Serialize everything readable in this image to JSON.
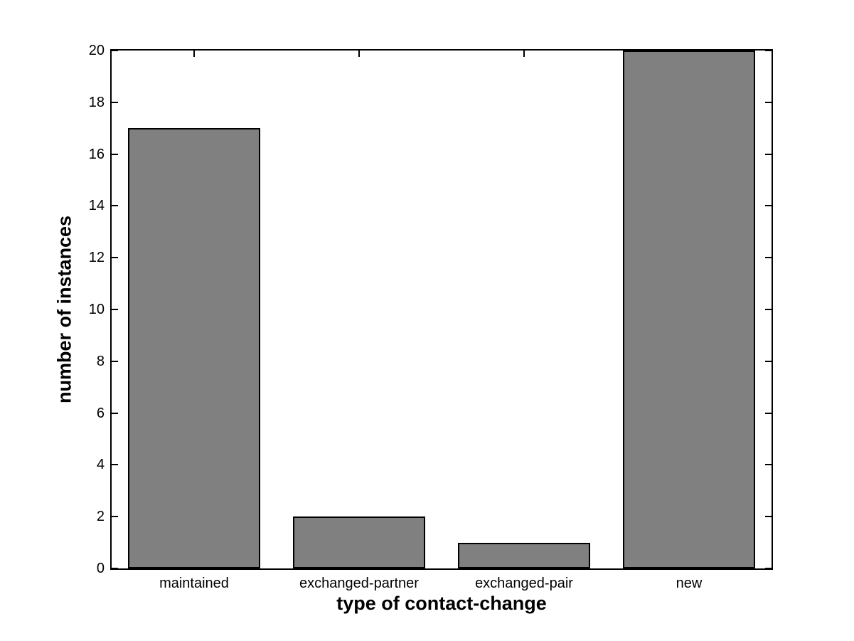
{
  "chart_data": {
    "type": "bar",
    "title": "",
    "categories": [
      "maintained",
      "exchanged-partner",
      "exchanged-pair",
      "new"
    ],
    "values": [
      17,
      2,
      1,
      20
    ],
    "xlabel": "type of contact-change",
    "ylabel": "number of instances",
    "ylim": [
      0,
      20
    ],
    "yticks": [
      0,
      2,
      4,
      6,
      8,
      10,
      12,
      14,
      16,
      18,
      20
    ],
    "bar_width_fraction": 0.8,
    "bar_fill_color": "#808080",
    "bar_edge_color": "#000000",
    "axis_color": "#000000",
    "background_color": "#ffffff",
    "grid": false,
    "legend": "none",
    "tick_direction": "in",
    "box": true
  }
}
